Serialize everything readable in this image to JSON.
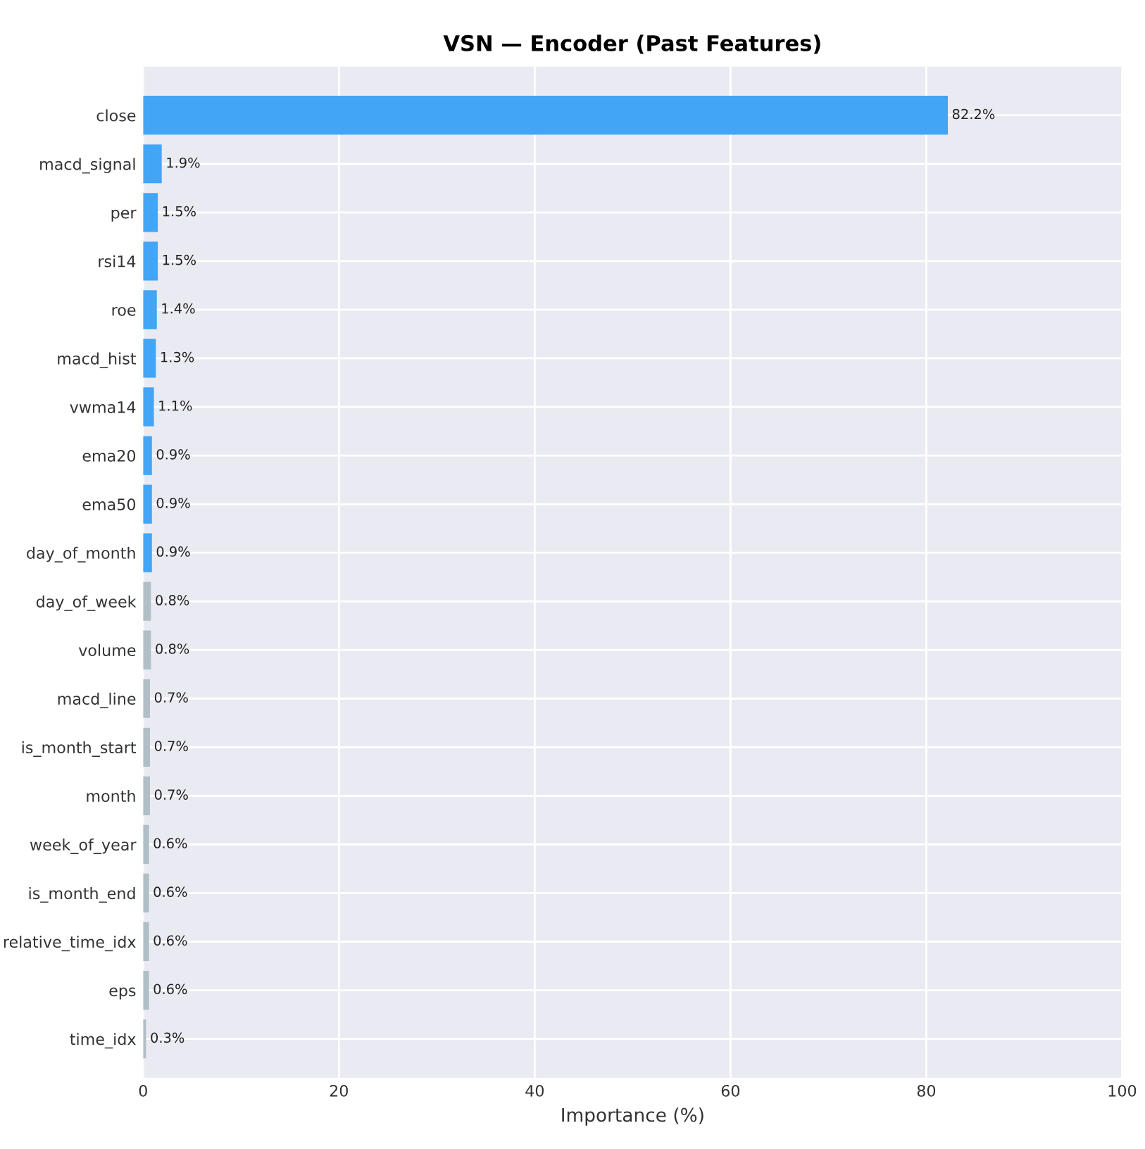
{
  "chart_data": {
    "type": "bar",
    "orientation": "horizontal",
    "title": "VSN — Encoder (Past Features)",
    "xlabel": "Importance (%)",
    "categories": [
      "close",
      "macd_signal",
      "per",
      "rsi14",
      "roe",
      "macd_hist",
      "vwma14",
      "ema20",
      "ema50",
      "day_of_month",
      "day_of_week",
      "volume",
      "macd_line",
      "is_month_start",
      "month",
      "week_of_year",
      "is_month_end",
      "relative_time_idx",
      "eps",
      "time_idx"
    ],
    "values": [
      82.2,
      1.9,
      1.5,
      1.5,
      1.4,
      1.3,
      1.1,
      0.9,
      0.9,
      0.9,
      0.8,
      0.8,
      0.7,
      0.7,
      0.7,
      0.6,
      0.6,
      0.6,
      0.6,
      0.3
    ],
    "value_labels": [
      "82.2%",
      "1.9%",
      "1.5%",
      "1.5%",
      "1.4%",
      "1.3%",
      "1.1%",
      "0.9%",
      "0.9%",
      "0.9%",
      "0.8%",
      "0.8%",
      "0.7%",
      "0.7%",
      "0.7%",
      "0.6%",
      "0.6%",
      "0.6%",
      "0.6%",
      "0.3%"
    ],
    "colors": [
      "#42a5f5",
      "#42a5f5",
      "#42a5f5",
      "#42a5f5",
      "#42a5f5",
      "#42a5f5",
      "#42a5f5",
      "#42a5f5",
      "#42a5f5",
      "#42a5f5",
      "#b0bec5",
      "#b0bec5",
      "#b0bec5",
      "#b0bec5",
      "#b0bec5",
      "#b0bec5",
      "#b0bec5",
      "#b0bec5",
      "#b0bec5",
      "#b0bec5"
    ],
    "xlim": [
      0,
      100
    ],
    "xticks": [
      0,
      20,
      40,
      60,
      80,
      100
    ],
    "grid": true
  }
}
